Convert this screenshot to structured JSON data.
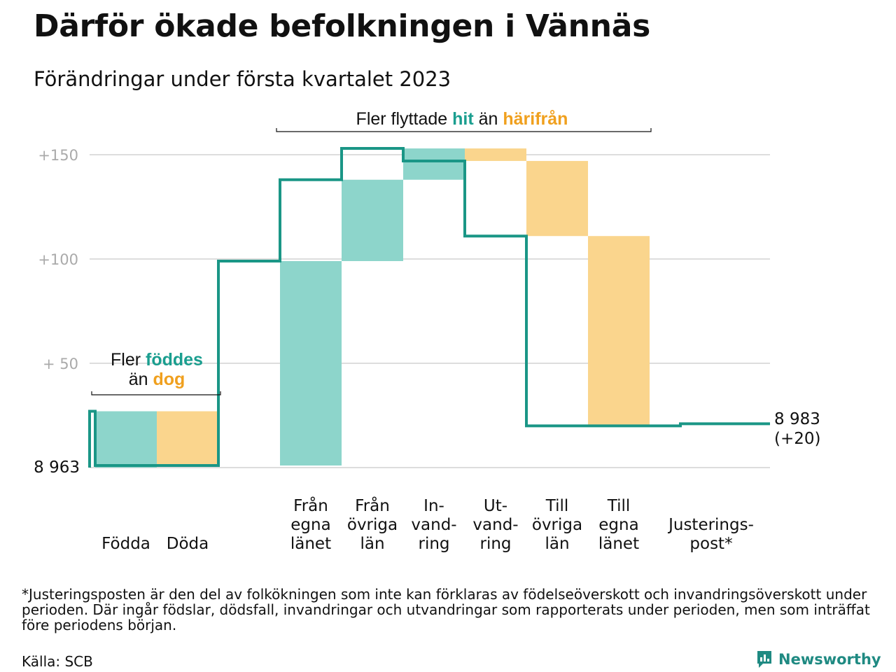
{
  "title": "Därför ökade befolkningen i Vännäs",
  "subtitle": "Förändringar under första kvartalet 2023",
  "chart_data": {
    "type": "waterfall",
    "baseline_value": 8963,
    "baseline_label": "8 963",
    "end_value": 8983,
    "end_label": "8 983",
    "end_change_label": "(+20)",
    "y_ticks": [
      {
        "value": 50,
        "label": "+ 50"
      },
      {
        "value": 100,
        "label": "+100"
      },
      {
        "value": 150,
        "label": "+150"
      }
    ],
    "ylim": [
      0,
      160
    ],
    "grid": true,
    "steps": [
      {
        "label": [
          "Födda"
        ],
        "change": 27,
        "kind": "inflow"
      },
      {
        "label": [
          "Döda"
        ],
        "change": -26,
        "kind": "outflow"
      },
      {
        "label": [],
        "change": 0,
        "kind": "gap"
      },
      {
        "label": [
          "Från",
          "egna",
          "länet"
        ],
        "change": 98,
        "kind": "inflow"
      },
      {
        "label": [
          "Från",
          "övriga",
          "län"
        ],
        "change": 39,
        "kind": "inflow"
      },
      {
        "label": [
          "In-",
          "vand-",
          "ring"
        ],
        "change": 15,
        "kind": "inflow"
      },
      {
        "label": [
          "Ut-",
          "vand-",
          "ring"
        ],
        "change": -6,
        "kind": "outflow"
      },
      {
        "label": [
          "Till",
          "övriga",
          "län"
        ],
        "change": -36,
        "kind": "outflow"
      },
      {
        "label": [
          "Till",
          "egna",
          "länet"
        ],
        "change": -91,
        "kind": "outflow"
      },
      {
        "label": [
          "Justerings-",
          "post*"
        ],
        "change": 1,
        "kind": "adjustment"
      }
    ],
    "annotations": [
      {
        "lines": [
          [
            {
              "text": "Fler ",
              "color": "#111111"
            },
            {
              "text": "föddes",
              "color": "#1a9e8f"
            }
          ],
          [
            {
              "text": "än ",
              "color": "#111111"
            },
            {
              "text": "dog",
              "color": "#f0a01e"
            }
          ]
        ]
      },
      {
        "lines": [
          [
            {
              "text": "Fler flyttade ",
              "color": "#111111"
            },
            {
              "text": "hit",
              "color": "#1a9e8f"
            },
            {
              "text": " än ",
              "color": "#111111"
            },
            {
              "text": "härifrån",
              "color": "#f0a01e"
            }
          ]
        ]
      }
    ],
    "colors": {
      "inflow": "#8dd5cb",
      "outflow": "#fad58d",
      "line": "#1a9686",
      "grid": "#dddddd",
      "tick": "#aaaaaa"
    }
  },
  "footnote": "*Justeringsposten är den del av folkökningen som inte kan förklaras av födelseöverskott och invandringsöverskott under perioden. Där ingår födslar, dödsfall, invandringar och utvandringar som rapporterats under perioden, men som inträffat före periodens början.",
  "source": "Källa: SCB",
  "brand": "Newsworthy"
}
